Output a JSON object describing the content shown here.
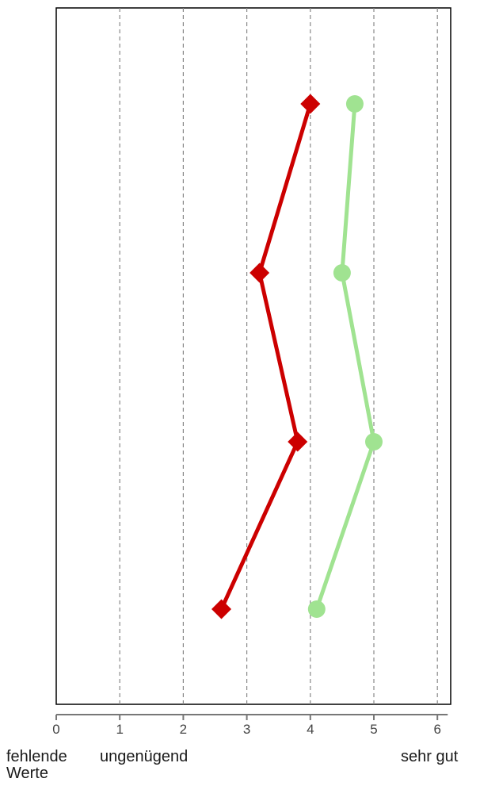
{
  "chart_data": {
    "type": "line",
    "orientation": "horizontal-values",
    "xlim": [
      0,
      6.2
    ],
    "x_ticks": [
      0,
      1,
      2,
      3,
      4,
      5,
      6
    ],
    "x_tick_labels": [
      "0",
      "1",
      "2",
      "3",
      "4",
      "5",
      "6"
    ],
    "scale_labels": {
      "missing": "fehlende Werte",
      "low": "ungenügend",
      "high": "sehr gut"
    },
    "grid": {
      "vertical_dashed": true
    },
    "series": [
      {
        "marker": "diamond",
        "color": "#cc0000",
        "values": [
          4.0,
          3.2,
          3.8,
          2.6
        ]
      },
      {
        "marker": "circle",
        "color": "#a0e391",
        "values": [
          4.7,
          4.5,
          5.0,
          4.1
        ]
      }
    ]
  }
}
